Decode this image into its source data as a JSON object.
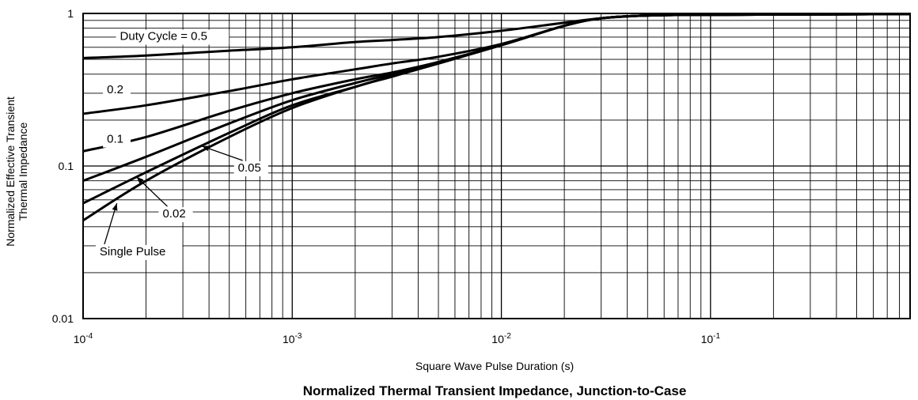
{
  "chart_data": {
    "type": "line",
    "title": "Normalized Thermal Transient Impedance, Junction-to-Case",
    "xlabel": "Square Wave Pulse Duration (s)",
    "ylabel_lines": [
      "Normalized Effective Transient",
      "Thermal Impedance"
    ],
    "x_scale": "log",
    "y_scale": "log",
    "xlim": [
      0.0001,
      0.9
    ],
    "ylim": [
      0.01,
      1
    ],
    "x_ticks": [
      {
        "value": 0.0001,
        "base": "10",
        "exp": "-4"
      },
      {
        "value": 0.001,
        "base": "10",
        "exp": "-3"
      },
      {
        "value": 0.01,
        "base": "10",
        "exp": "-2"
      },
      {
        "value": 0.1,
        "base": "10",
        "exp": "-1"
      }
    ],
    "y_ticks": [
      {
        "value": 1,
        "label": "1"
      },
      {
        "value": 0.1,
        "label": "0.1"
      },
      {
        "value": 0.01,
        "label": "0.01"
      }
    ],
    "grid": true,
    "series": [
      {
        "name": "Duty Cycle = 0.5",
        "x": [
          0.0001,
          0.0002,
          0.0005,
          0.001,
          0.002,
          0.003,
          0.005,
          0.01,
          0.02,
          0.03,
          0.05,
          0.1,
          0.9
        ],
        "y": [
          0.51,
          0.53,
          0.57,
          0.6,
          0.65,
          0.67,
          0.7,
          0.77,
          0.87,
          0.93,
          0.97,
          0.98,
          0.99
        ]
      },
      {
        "name": "0.2",
        "x": [
          0.0001,
          0.0002,
          0.0005,
          0.001,
          0.002,
          0.003,
          0.005,
          0.01,
          0.02,
          0.03,
          0.05,
          0.1,
          0.9
        ],
        "y": [
          0.22,
          0.25,
          0.31,
          0.37,
          0.43,
          0.47,
          0.52,
          0.63,
          0.83,
          0.93,
          0.97,
          0.98,
          0.99
        ]
      },
      {
        "name": "0.1",
        "x": [
          0.0001,
          0.0002,
          0.0005,
          0.001,
          0.002,
          0.003,
          0.005,
          0.01,
          0.02,
          0.03,
          0.05,
          0.1,
          0.9
        ],
        "y": [
          0.125,
          0.155,
          0.23,
          0.3,
          0.37,
          0.41,
          0.48,
          0.62,
          0.83,
          0.93,
          0.97,
          0.98,
          0.99
        ]
      },
      {
        "name": "0.05",
        "x": [
          0.0001,
          0.0002,
          0.0005,
          0.001,
          0.002,
          0.003,
          0.005,
          0.01,
          0.02,
          0.03,
          0.05,
          0.1,
          0.9
        ],
        "y": [
          0.08,
          0.115,
          0.19,
          0.27,
          0.35,
          0.4,
          0.48,
          0.62,
          0.83,
          0.93,
          0.97,
          0.98,
          0.99
        ]
      },
      {
        "name": "0.02",
        "x": [
          0.0001,
          0.0002,
          0.0005,
          0.001,
          0.002,
          0.003,
          0.005,
          0.01,
          0.02,
          0.03,
          0.05,
          0.1,
          0.9
        ],
        "y": [
          0.057,
          0.091,
          0.165,
          0.25,
          0.33,
          0.39,
          0.47,
          0.62,
          0.83,
          0.93,
          0.97,
          0.98,
          0.99
        ]
      },
      {
        "name": "Single Pulse",
        "x": [
          0.0001,
          0.0002,
          0.0005,
          0.001,
          0.002,
          0.003,
          0.005,
          0.01,
          0.02,
          0.03,
          0.05,
          0.1,
          0.9
        ],
        "y": [
          0.044,
          0.08,
          0.155,
          0.24,
          0.33,
          0.385,
          0.47,
          0.62,
          0.83,
          0.93,
          0.97,
          0.98,
          0.99
        ]
      }
    ],
    "curve_labels": [
      {
        "series": "Duty Cycle = 0.5",
        "text": "Duty Cycle = 0.5",
        "at_x": 0.00015,
        "at_y": 0.67
      },
      {
        "series": "0.2",
        "text": "0.2",
        "at_x": 0.00013,
        "at_y": 0.3
      },
      {
        "series": "0.1",
        "text": "0.1",
        "at_x": 0.00013,
        "at_y": 0.142
      },
      {
        "series": "0.05",
        "text": "0.05",
        "at_x": 0.00055,
        "at_y": 0.092,
        "arrow_to_x": 0.00037,
        "arrow_to_y": 0.135
      },
      {
        "series": "0.02",
        "text": "0.02",
        "at_x": 0.00024,
        "at_y": 0.046,
        "arrow_to_x": 0.00018,
        "arrow_to_y": 0.085
      },
      {
        "series": "Single Pulse",
        "text": "Single Pulse",
        "at_x": 0.00012,
        "at_y": 0.026,
        "arrow_to_x": 0.000145,
        "arrow_to_y": 0.057
      }
    ]
  }
}
